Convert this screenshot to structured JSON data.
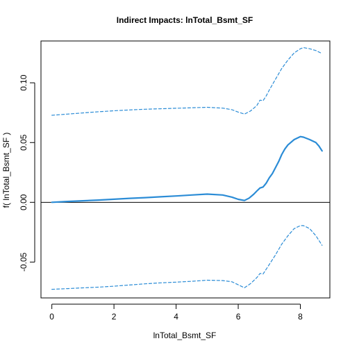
{
  "chart_data": {
    "type": "line",
    "title": "Indirect Impacts:  lnTotal_Bsmt_SF",
    "xlabel": "lnTotal_Bsmt_SF",
    "ylabel": "f( lnTotal_Bsmt_SF )",
    "xlim": [
      -0.35,
      8.95
    ],
    "ylim": [
      -0.08,
      0.135
    ],
    "x_ticks": [
      0,
      2,
      4,
      6,
      8
    ],
    "x_tick_labels": [
      "0",
      "2",
      "4",
      "6",
      "8"
    ],
    "y_ticks": [
      -0.05,
      0.0,
      0.05,
      0.1
    ],
    "y_tick_labels": [
      "-0.05",
      "0.00",
      "0.05",
      "0.10"
    ],
    "reference_line_y": 0,
    "grid": false,
    "line_color": "#2b8cd6",
    "series": [
      {
        "role": "estimate",
        "style": "solid",
        "x": [
          0.0,
          0.5,
          1.0,
          1.5,
          2.0,
          2.5,
          3.0,
          3.5,
          4.0,
          4.5,
          5.0,
          5.5,
          5.8,
          6.0,
          6.2,
          6.35,
          6.5,
          6.6,
          6.7,
          6.8,
          6.9,
          7.0,
          7.1,
          7.2,
          7.3,
          7.4,
          7.5,
          7.6,
          7.8,
          8.0,
          8.1,
          8.3,
          8.5,
          8.6,
          8.7
        ],
        "y": [
          0.0,
          0.0007,
          0.0013,
          0.0019,
          0.0026,
          0.0033,
          0.0039,
          0.0046,
          0.0053,
          0.0061,
          0.0069,
          0.0061,
          0.0043,
          0.0025,
          0.0015,
          0.0035,
          0.0068,
          0.0095,
          0.012,
          0.0128,
          0.016,
          0.0205,
          0.024,
          0.029,
          0.034,
          0.04,
          0.0445,
          0.048,
          0.0525,
          0.055,
          0.0545,
          0.0525,
          0.05,
          0.047,
          0.043
        ]
      },
      {
        "role": "upper",
        "style": "dashed",
        "x": [
          0.0,
          0.5,
          1.0,
          1.5,
          2.0,
          2.5,
          3.0,
          3.5,
          4.0,
          4.5,
          5.0,
          5.5,
          5.8,
          6.0,
          6.2,
          6.4,
          6.6,
          6.7,
          6.8,
          6.9,
          7.0,
          7.2,
          7.4,
          7.6,
          7.8,
          8.0,
          8.1,
          8.3,
          8.5,
          8.7
        ],
        "y": [
          0.0728,
          0.0738,
          0.0748,
          0.0758,
          0.0766,
          0.0773,
          0.0779,
          0.0783,
          0.0787,
          0.0791,
          0.0795,
          0.0788,
          0.0775,
          0.0755,
          0.0738,
          0.0765,
          0.081,
          0.0855,
          0.085,
          0.089,
          0.094,
          0.103,
          0.112,
          0.119,
          0.125,
          0.1285,
          0.1295,
          0.1285,
          0.127,
          0.1245
        ]
      },
      {
        "role": "lower",
        "style": "dashed",
        "x": [
          0.0,
          0.5,
          1.0,
          1.5,
          2.0,
          2.5,
          3.0,
          3.5,
          4.0,
          4.5,
          5.0,
          5.5,
          5.8,
          6.0,
          6.2,
          6.4,
          6.6,
          6.7,
          6.8,
          6.9,
          7.0,
          7.2,
          7.4,
          7.6,
          7.8,
          8.0,
          8.1,
          8.3,
          8.5,
          8.7
        ],
        "y": [
          -0.0728,
          -0.0722,
          -0.0716,
          -0.071,
          -0.0702,
          -0.0692,
          -0.0682,
          -0.0674,
          -0.0668,
          -0.0661,
          -0.0652,
          -0.0655,
          -0.0665,
          -0.069,
          -0.0715,
          -0.068,
          -0.063,
          -0.0595,
          -0.06,
          -0.056,
          -0.052,
          -0.044,
          -0.035,
          -0.028,
          -0.022,
          -0.0195,
          -0.0195,
          -0.022,
          -0.028,
          -0.036
        ]
      }
    ]
  }
}
